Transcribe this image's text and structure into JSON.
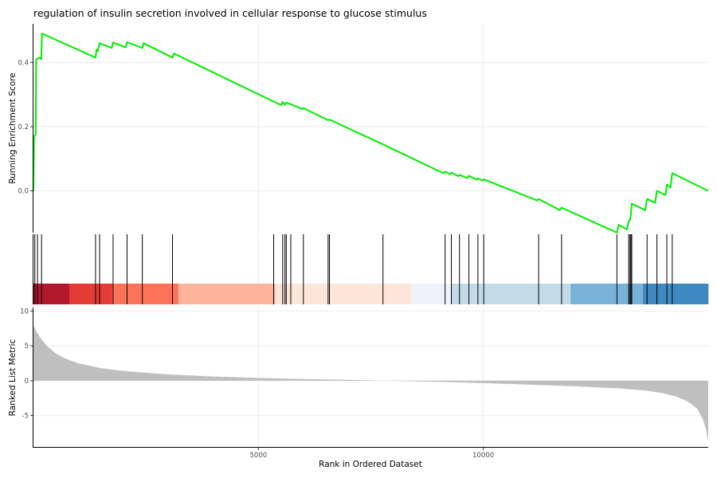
{
  "chart_data": {
    "type": "line",
    "title": "regulation of insulin secretion involved in cellular response to glucose stimulus",
    "xlabel": "Rank in Ordered Dataset",
    "xlim": [
      0,
      15000
    ],
    "x_ticks": [
      5000,
      10000
    ],
    "x_tick_labels": [
      "5000",
      "10000"
    ],
    "panels": {
      "enrichment": {
        "ylabel": "Running Enrichment Score",
        "ylim": [
          -0.13,
          0.52
        ],
        "y_ticks": [
          0.0,
          0.2,
          0.4
        ],
        "y_tick_labels": [
          "0.0",
          "0.2",
          "0.4"
        ],
        "line_color": "#00ee00",
        "points": [
          [
            0,
            0.0
          ],
          [
            15,
            0.17
          ],
          [
            50,
            0.175
          ],
          [
            60,
            0.41
          ],
          [
            140,
            0.415
          ],
          [
            175,
            0.41
          ],
          [
            190,
            0.49
          ],
          [
            1380,
            0.415
          ],
          [
            1400,
            0.44
          ],
          [
            1430,
            0.435
          ],
          [
            1470,
            0.46
          ],
          [
            1740,
            0.445
          ],
          [
            1770,
            0.462
          ],
          [
            2050,
            0.447
          ],
          [
            2080,
            0.463
          ],
          [
            2420,
            0.445
          ],
          [
            2450,
            0.46
          ],
          [
            3090,
            0.415
          ],
          [
            3120,
            0.428
          ],
          [
            5340,
            0.278
          ],
          [
            5510,
            0.267
          ],
          [
            5540,
            0.277
          ],
          [
            5590,
            0.268
          ],
          [
            5620,
            0.275
          ],
          [
            5720,
            0.27
          ],
          [
            5970,
            0.255
          ],
          [
            6000,
            0.258
          ],
          [
            6550,
            0.22
          ],
          [
            6580,
            0.222
          ],
          [
            7770,
            0.145
          ],
          [
            9110,
            0.055
          ],
          [
            9150,
            0.06
          ],
          [
            9260,
            0.052
          ],
          [
            9290,
            0.057
          ],
          [
            9440,
            0.046
          ],
          [
            9470,
            0.05
          ],
          [
            9640,
            0.04
          ],
          [
            9680,
            0.047
          ],
          [
            9850,
            0.035
          ],
          [
            9880,
            0.039
          ],
          [
            9980,
            0.032
          ],
          [
            10010,
            0.036
          ],
          [
            11200,
            -0.03
          ],
          [
            11230,
            -0.025
          ],
          [
            11700,
            -0.06
          ],
          [
            11740,
            -0.052
          ],
          [
            12970,
            -0.13
          ],
          [
            13010,
            -0.106
          ],
          [
            13190,
            -0.12
          ],
          [
            13230,
            -0.095
          ],
          [
            13260,
            -0.09
          ],
          [
            13280,
            -0.075
          ],
          [
            13300,
            -0.04
          ],
          [
            13600,
            -0.06
          ],
          [
            13640,
            -0.025
          ],
          [
            13820,
            -0.037
          ],
          [
            13860,
            0.0
          ],
          [
            14050,
            -0.013
          ],
          [
            14080,
            0.02
          ],
          [
            14160,
            0.01
          ],
          [
            14200,
            0.055
          ],
          [
            15000,
            0.0
          ]
        ]
      },
      "hits": {
        "positions": [
          30,
          90,
          180,
          1380,
          1470,
          1770,
          2080,
          2420,
          3090,
          5340,
          5540,
          5590,
          5620,
          5720,
          6000,
          6550,
          6580,
          7770,
          9150,
          9290,
          9470,
          9680,
          9880,
          10010,
          11230,
          11740,
          12970,
          13230,
          13260,
          13280,
          13300,
          13640,
          13860,
          14080,
          14200
        ]
      },
      "color_band": {
        "segments": [
          {
            "start": 0,
            "end": 800,
            "color": "#b2182b"
          },
          {
            "start": 800,
            "end": 1750,
            "color": "#e53b37"
          },
          {
            "start": 1750,
            "end": 3220,
            "color": "#fc735a"
          },
          {
            "start": 3220,
            "end": 5370,
            "color": "#fdb39b"
          },
          {
            "start": 5370,
            "end": 8390,
            "color": "#fee5da"
          },
          {
            "start": 8390,
            "end": 9300,
            "color": "#eef3fb"
          },
          {
            "start": 9300,
            "end": 11940,
            "color": "#c3dbe9"
          },
          {
            "start": 11940,
            "end": 13550,
            "color": "#77b3d9"
          },
          {
            "start": 13550,
            "end": 15000,
            "color": "#3f89c1"
          }
        ]
      },
      "ranked": {
        "ylabel": "Ranked List Metric",
        "ylim": [
          -9.5,
          10.5
        ],
        "y_ticks": [
          10,
          5,
          0,
          -5
        ],
        "y_tick_labels": [
          "10",
          "5",
          "0",
          "-5"
        ],
        "fill_color": "#bfbfbf",
        "points": [
          [
            0,
            8.0
          ],
          [
            50,
            7.2
          ],
          [
            150,
            6.2
          ],
          [
            300,
            5.0
          ],
          [
            500,
            3.9
          ],
          [
            700,
            3.2
          ],
          [
            1000,
            2.5
          ],
          [
            1500,
            1.8
          ],
          [
            2000,
            1.4
          ],
          [
            3000,
            0.9
          ],
          [
            4000,
            0.6
          ],
          [
            5000,
            0.4
          ],
          [
            6000,
            0.25
          ],
          [
            7000,
            0.12
          ],
          [
            7500,
            0.05
          ],
          [
            7800,
            0.0
          ],
          [
            9000,
            -0.15
          ],
          [
            10000,
            -0.35
          ],
          [
            11000,
            -0.55
          ],
          [
            12000,
            -0.8
          ],
          [
            13000,
            -1.1
          ],
          [
            13600,
            -1.4
          ],
          [
            14000,
            -1.8
          ],
          [
            14300,
            -2.3
          ],
          [
            14550,
            -3.0
          ],
          [
            14750,
            -4.0
          ],
          [
            14880,
            -5.5
          ],
          [
            14950,
            -7.0
          ],
          [
            15000,
            -8.6
          ]
        ]
      }
    }
  }
}
